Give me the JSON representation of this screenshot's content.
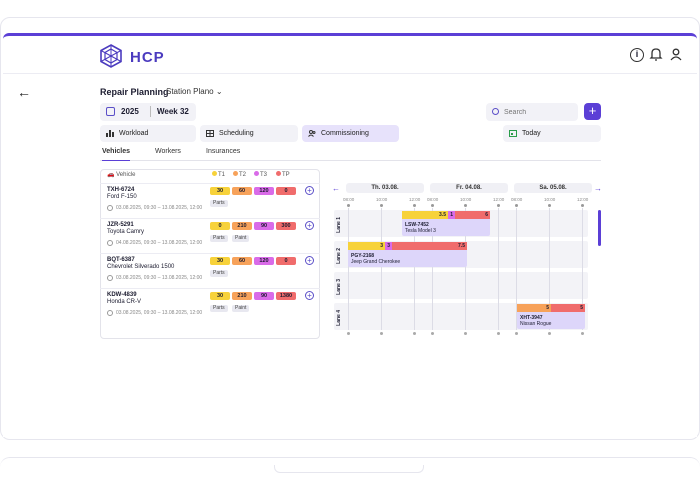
{
  "colors": {
    "accent": "#5b3fd6",
    "t1": "#f7d23a",
    "t2": "#f7a25a",
    "t3": "#d96be8",
    "tp": "#f06c6c"
  },
  "header": {
    "logo_text": "HCP",
    "icons": [
      "info-icon",
      "bell-icon",
      "user-icon"
    ]
  },
  "page": {
    "title": "Repair Planning",
    "station": "Station Plano"
  },
  "toolbar": {
    "year": "2025",
    "week": "Week 32",
    "search_placeholder": "Search",
    "add": "+"
  },
  "modes": [
    {
      "label": "Workload",
      "icon": "bar-chart-icon"
    },
    {
      "label": "Scheduling",
      "icon": "grid-icon"
    },
    {
      "label": "Commissioning",
      "icon": "users-icon"
    },
    {
      "label": "Today",
      "icon": "calendar-icon"
    }
  ],
  "tabs": [
    "Vehicles",
    "Workers",
    "Insurances"
  ],
  "legend": {
    "vehicle": "Vehicle",
    "t1": "T1",
    "t2": "T2",
    "t3": "T3",
    "tp": "TP"
  },
  "vehicles": [
    {
      "plate": "TXH-6724",
      "model": "Ford F-150",
      "time": "03.08.2025, 09:30 – 13.08.2025, 12:00",
      "t1": "30",
      "t2": "60",
      "t3": "120",
      "tp": "0",
      "tags": [
        "Parts"
      ]
    },
    {
      "plate": "JZR-5291",
      "model": "Toyota Camry",
      "time": "04.08.2025, 09:30 – 13.08.2025, 12:00",
      "t1": "0",
      "t2": "210",
      "t3": "90",
      "tp": "300",
      "tags": [
        "Parts",
        "Paint"
      ]
    },
    {
      "plate": "BQT-6387",
      "model": "Chevrolet Silverado 1500",
      "time": "03.08.2025, 09:30 – 13.08.2025, 12:00",
      "t1": "30",
      "t2": "60",
      "t3": "120",
      "tp": "0",
      "tags": [
        "Parts"
      ]
    },
    {
      "plate": "KDW-4839",
      "model": "Honda CR-V",
      "time": "03.08.2025, 09:30 – 13.08.2025, 12:00",
      "t1": "30",
      "t2": "210",
      "t3": "90",
      "tp": "1380",
      "tags": [
        "Parts",
        "Paint"
      ]
    }
  ],
  "timeline": {
    "days": [
      "Th. 03.08.",
      "Fr. 04.08.",
      "Sa. 05.08."
    ],
    "hours": [
      "08:00",
      "10:00",
      "12:00",
      "08:00",
      "10:00",
      "12:00",
      "08:00",
      "10:00",
      "12:00"
    ],
    "lanes": [
      "Lane 1",
      "Lane 2",
      "Lane 3",
      "Lane 4"
    ],
    "jobs": [
      {
        "plate": "LSW-7452",
        "model": "Tesla Model 3",
        "segs": [
          "",
          "3.5",
          "1",
          "6"
        ]
      },
      {
        "plate": "PGY-2168",
        "model": "Jeep Grand Cherokee",
        "segs": [
          "3",
          "3",
          "7.5"
        ]
      },
      {
        "plate": "XHT-3947",
        "model": "Nissan Rogue",
        "segs": [
          "5",
          "5"
        ]
      }
    ]
  }
}
